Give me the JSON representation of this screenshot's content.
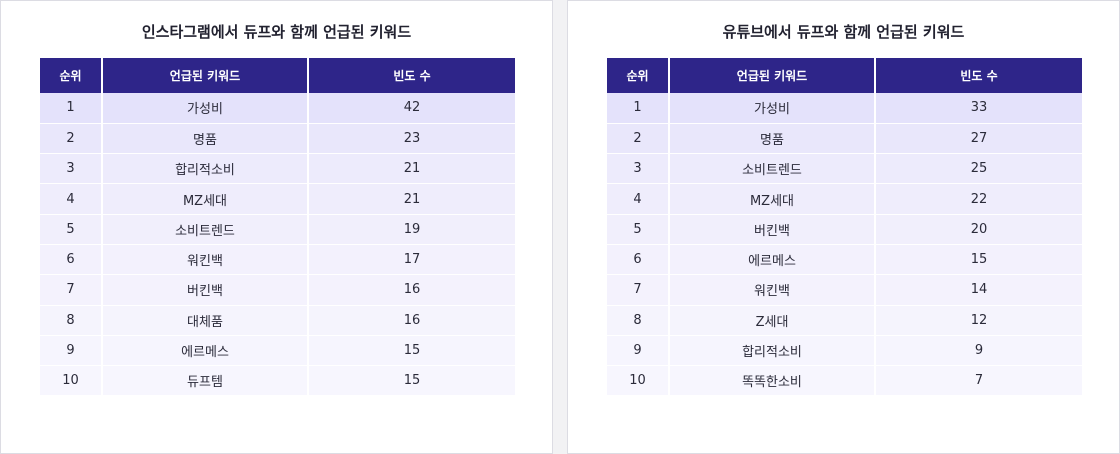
{
  "instagram": {
    "title": "인스타그램에서 듀프와 함께 언급된 키워드",
    "headers": [
      "순위",
      "언급된 키워드",
      "빈도 수"
    ],
    "rows": [
      {
        "rank": "1",
        "keyword": "가성비",
        "count": "42"
      },
      {
        "rank": "2",
        "keyword": "명품",
        "count": "23"
      },
      {
        "rank": "3",
        "keyword": "합리적소비",
        "count": "21"
      },
      {
        "rank": "4",
        "keyword": "MZ세대",
        "count": "21"
      },
      {
        "rank": "5",
        "keyword": "소비트렌드",
        "count": "19"
      },
      {
        "rank": "6",
        "keyword": "워킨백",
        "count": "17"
      },
      {
        "rank": "7",
        "keyword": "버킨백",
        "count": "16"
      },
      {
        "rank": "8",
        "keyword": "대체품",
        "count": "16"
      },
      {
        "rank": "9",
        "keyword": "에르메스",
        "count": "15"
      },
      {
        "rank": "10",
        "keyword": "듀프템",
        "count": "15"
      }
    ]
  },
  "youtube": {
    "title": "유튜브에서 듀프와 함께 언급된 키워드",
    "headers": [
      "순위",
      "언급된 키워드",
      "빈도 수"
    ],
    "rows": [
      {
        "rank": "1",
        "keyword": "가성비",
        "count": "33"
      },
      {
        "rank": "2",
        "keyword": "명품",
        "count": "27"
      },
      {
        "rank": "3",
        "keyword": "소비트렌드",
        "count": "25"
      },
      {
        "rank": "4",
        "keyword": "MZ세대",
        "count": "22"
      },
      {
        "rank": "5",
        "keyword": "버킨백",
        "count": "20"
      },
      {
        "rank": "6",
        "keyword": "에르메스",
        "count": "15"
      },
      {
        "rank": "7",
        "keyword": "워킨백",
        "count": "14"
      },
      {
        "rank": "8",
        "keyword": "Z세대",
        "count": "12"
      },
      {
        "rank": "9",
        "keyword": "합리적소비",
        "count": "9"
      },
      {
        "rank": "10",
        "keyword": "똑똑한소비",
        "count": "7"
      }
    ]
  },
  "colors": {
    "header_bg": "#2e2589",
    "row_tint": "#e4e2fb"
  }
}
